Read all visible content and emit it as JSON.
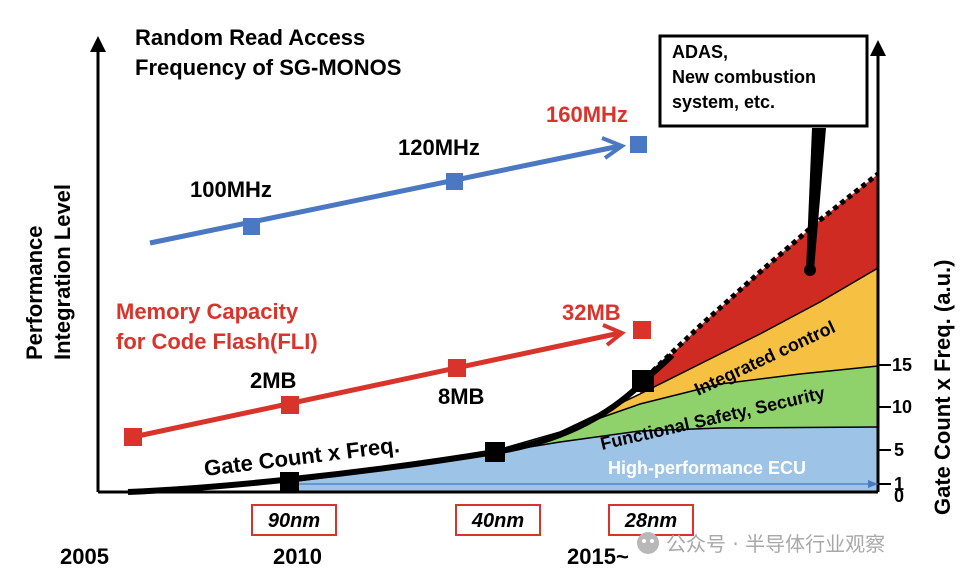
{
  "chart_data": {
    "type": "line",
    "title": "Random Read Access\nFrequency of SG-MONOS",
    "ylabel": "Performance\nIntegration Level",
    "y2label": "Gate Count x Freq. (a.u.)",
    "x_ticks": [
      "2005",
      "2010",
      "2015~"
    ],
    "process_nodes": [
      "90nm",
      "40nm",
      "28nm"
    ],
    "y2_ticks": [
      "0",
      "1",
      "5",
      "10",
      "15"
    ],
    "series": [
      {
        "name": "Random Read Access Frequency of SG-MONOS",
        "color": "#4a78c2",
        "points": [
          {
            "x": 2008.2,
            "label": "100MHz"
          },
          {
            "x": 2012.8,
            "label": "120MHz"
          },
          {
            "x": 2016.2,
            "label": "160MHz"
          }
        ]
      },
      {
        "name": "Memory Capacity\nfor Code Flash(FLI)",
        "color": "#d9342b",
        "points": [
          {
            "x": 2005.3,
            "label": ""
          },
          {
            "x": 2010.0,
            "label": "2MB"
          },
          {
            "x": 2012.8,
            "label": "8MB"
          },
          {
            "x": 2016.2,
            "label": "32MB"
          }
        ]
      },
      {
        "name": "Gate Count x Freq.",
        "color": "#000000",
        "points": [
          {
            "x": 2010.0,
            "y": 0.5
          },
          {
            "x": 2013.5,
            "y": 4.5
          },
          {
            "x": 2016.2,
            "y": 13
          }
        ]
      }
    ],
    "areas": [
      {
        "label": "High-performance ECU",
        "color": "#9dc3e6"
      },
      {
        "label": "Functional Safety, Security",
        "color": "#8fd16a"
      },
      {
        "label": "Integrated control",
        "color": "#f6c142"
      },
      {
        "label": "",
        "color": "#d02b22"
      }
    ],
    "callout": "ADAS,\nNew combustion\nsystem, etc."
  },
  "watermark": "公众号 · 半导体行业观察"
}
